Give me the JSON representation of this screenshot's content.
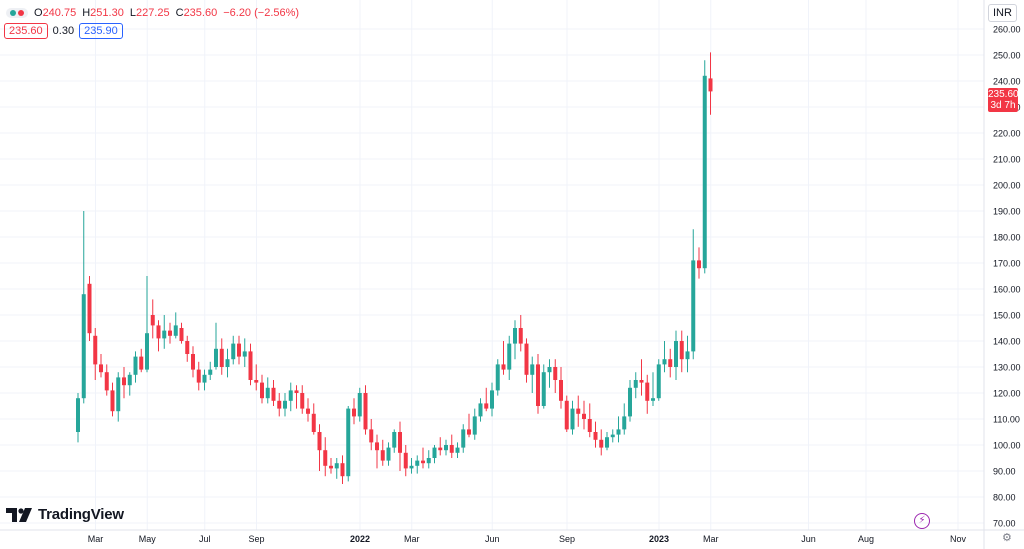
{
  "legend": {
    "open_label": "O",
    "open": "240.75",
    "high_label": "H",
    "high": "251.30",
    "low_label": "L",
    "low": "227.25",
    "close_label": "C",
    "close": "235.60",
    "change": "−6.20 (−2.56%)",
    "bid": "235.60",
    "spread": "0.30",
    "ask": "235.90"
  },
  "currency": "INR",
  "last_price": {
    "value": "235.60",
    "countdown": "3d 7h"
  },
  "logo_text": "TradingView",
  "colors": {
    "up": "#26a69a",
    "down": "#f23645",
    "grid": "#f0f3fa",
    "axis_text": "#131722"
  },
  "chart_data": {
    "type": "candlestick",
    "interval": "weekly",
    "y_ticks": [
      70,
      80,
      90,
      100,
      110,
      120,
      130,
      140,
      150,
      160,
      170,
      180,
      190,
      200,
      210,
      220,
      230,
      240,
      250,
      260
    ],
    "y_range": [
      68,
      262
    ],
    "x_labels": [
      "Mar",
      "May",
      "Jul",
      "Sep",
      "2022",
      "Mar",
      "Jun",
      "Sep",
      "2023",
      "Mar",
      "Jun",
      "Aug",
      "Nov"
    ],
    "x_label_index": [
      2,
      11,
      21,
      30,
      48,
      57,
      71,
      84,
      100,
      109,
      126,
      136,
      152
    ],
    "x_bold": [
      "2022",
      "2023"
    ],
    "candles": [
      [
        105,
        120,
        101,
        118
      ],
      [
        118,
        190,
        116,
        158
      ],
      [
        162,
        165,
        140,
        143
      ],
      [
        142,
        145,
        125,
        131
      ],
      [
        131,
        135,
        126,
        128
      ],
      [
        128,
        131,
        119,
        121
      ],
      [
        121,
        124,
        111,
        113
      ],
      [
        113,
        128,
        109,
        126
      ],
      [
        126,
        130,
        118,
        123
      ],
      [
        123,
        128,
        119,
        127
      ],
      [
        127,
        136,
        124,
        134
      ],
      [
        134,
        137,
        128,
        129
      ],
      [
        129,
        165,
        128,
        143
      ],
      [
        150,
        156,
        141,
        146
      ],
      [
        146,
        148,
        136,
        141
      ],
      [
        141,
        150,
        137,
        144
      ],
      [
        144,
        147,
        139,
        142
      ],
      [
        142,
        151,
        141,
        146
      ],
      [
        145,
        147,
        139,
        140
      ],
      [
        140,
        142,
        132,
        135
      ],
      [
        135,
        138,
        126,
        129
      ],
      [
        129,
        132,
        121,
        124
      ],
      [
        124,
        129,
        121,
        127
      ],
      [
        127,
        132,
        125,
        129
      ],
      [
        130,
        147,
        129,
        137
      ],
      [
        137,
        141,
        127,
        130
      ],
      [
        130,
        137,
        126,
        133
      ],
      [
        133,
        142,
        131,
        139
      ],
      [
        139,
        142,
        131,
        134
      ],
      [
        134,
        141,
        130,
        136
      ],
      [
        136,
        139,
        123,
        125
      ],
      [
        125,
        131,
        121,
        124
      ],
      [
        124,
        127,
        116,
        118
      ],
      [
        118,
        126,
        116,
        122
      ],
      [
        122,
        125,
        115,
        117
      ],
      [
        117,
        120,
        111,
        114
      ],
      [
        114,
        120,
        111,
        117
      ],
      [
        117,
        124,
        113,
        121
      ],
      [
        121,
        123,
        114,
        120
      ],
      [
        120,
        123,
        112,
        114
      ],
      [
        114,
        118,
        109,
        112
      ],
      [
        112,
        116,
        104,
        105
      ],
      [
        105,
        108,
        90,
        98
      ],
      [
        98,
        103,
        88,
        92
      ],
      [
        92,
        95,
        89,
        91
      ],
      [
        91,
        95,
        87,
        93
      ],
      [
        93,
        96,
        85,
        88
      ],
      [
        88,
        115,
        86,
        114
      ],
      [
        114,
        118,
        108,
        111
      ],
      [
        111,
        122,
        109,
        120
      ],
      [
        120,
        123,
        104,
        106
      ],
      [
        106,
        110,
        98,
        101
      ],
      [
        101,
        104,
        91,
        98
      ],
      [
        98,
        102,
        92,
        94
      ],
      [
        94,
        101,
        92,
        99
      ],
      [
        99,
        106,
        97,
        105
      ],
      [
        105,
        109,
        90,
        97
      ],
      [
        97,
        100,
        88,
        91
      ],
      [
        91,
        95,
        89,
        92
      ],
      [
        92,
        96,
        89,
        94
      ],
      [
        94,
        99,
        91,
        93
      ],
      [
        93,
        98,
        91,
        95
      ],
      [
        95,
        100,
        93,
        99
      ],
      [
        99,
        103,
        96,
        98
      ],
      [
        98,
        102,
        96,
        100
      ],
      [
        100,
        104,
        95,
        97
      ],
      [
        97,
        101,
        95,
        99
      ],
      [
        99,
        108,
        97,
        106
      ],
      [
        106,
        112,
        103,
        104
      ],
      [
        104,
        114,
        102,
        111
      ],
      [
        111,
        118,
        109,
        116
      ],
      [
        116,
        122,
        113,
        114
      ],
      [
        114,
        124,
        111,
        121
      ],
      [
        121,
        133,
        119,
        131
      ],
      [
        131,
        140,
        127,
        129
      ],
      [
        129,
        142,
        125,
        139
      ],
      [
        139,
        148,
        133,
        145
      ],
      [
        145,
        150,
        136,
        139
      ],
      [
        139,
        141,
        124,
        127
      ],
      [
        127,
        134,
        120,
        131
      ],
      [
        131,
        135,
        112,
        115
      ],
      [
        115,
        131,
        114,
        128
      ],
      [
        128,
        133,
        122,
        130
      ],
      [
        130,
        133,
        120,
        125
      ],
      [
        125,
        130,
        114,
        117
      ],
      [
        117,
        119,
        105,
        106
      ],
      [
        106,
        117,
        104,
        114
      ],
      [
        114,
        119,
        107,
        112
      ],
      [
        112,
        117,
        106,
        110
      ],
      [
        110,
        116,
        103,
        105
      ],
      [
        105,
        109,
        99,
        102
      ],
      [
        102,
        106,
        96,
        99
      ],
      [
        99,
        105,
        98,
        103
      ],
      [
        103,
        106,
        101,
        104
      ],
      [
        104,
        111,
        101,
        106
      ],
      [
        106,
        116,
        104,
        111
      ],
      [
        111,
        125,
        109,
        122
      ],
      [
        122,
        128,
        118,
        125
      ],
      [
        125,
        133,
        119,
        124
      ],
      [
        124,
        127,
        112,
        117
      ],
      [
        117,
        128,
        115,
        118
      ],
      [
        118,
        133,
        117,
        131
      ],
      [
        131,
        140,
        128,
        133
      ],
      [
        133,
        137,
        126,
        130
      ],
      [
        130,
        144,
        125,
        140
      ],
      [
        140,
        144,
        128,
        133
      ],
      [
        133,
        142,
        128,
        136
      ],
      [
        136,
        183,
        133,
        171
      ]
    ],
    "x_start": 5
  }
}
